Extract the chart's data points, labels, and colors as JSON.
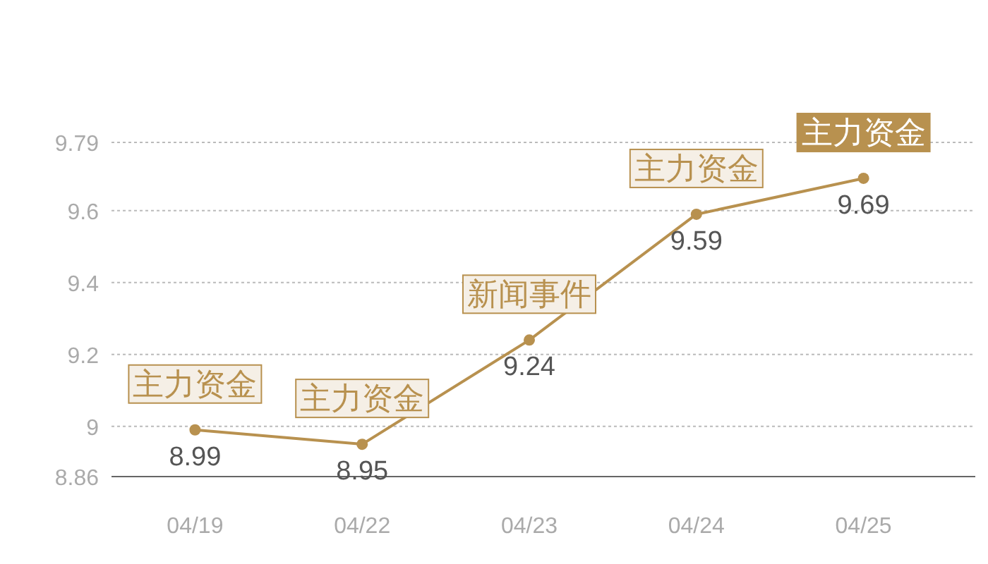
{
  "chart_data": {
    "type": "line",
    "categories": [
      "04/19",
      "04/22",
      "04/23",
      "04/24",
      "04/25"
    ],
    "series": [
      {
        "color": "#b8914f",
        "values": [
          8.99,
          8.95,
          9.24,
          9.59,
          9.69
        ]
      }
    ],
    "ylim": [
      8.86,
      9.79
    ],
    "yticks": [
      8.86,
      9,
      9.2,
      9.4,
      9.6,
      9.79
    ],
    "grid": "y",
    "marker": "circle",
    "line_style": "solid",
    "data_labels": true,
    "annotations": [
      {
        "text": "主力资金",
        "x": "04/19",
        "y": 8.99
      },
      {
        "text": "主力资金",
        "x": "04/22",
        "y": 8.95
      },
      {
        "text": "新闻事件",
        "x": "04/23",
        "y": 9.24
      },
      {
        "text": "主力资金",
        "x": "04/24",
        "y": 9.59
      },
      {
        "text": "主力资金",
        "x": "04/25",
        "y": 9.69
      }
    ]
  }
}
